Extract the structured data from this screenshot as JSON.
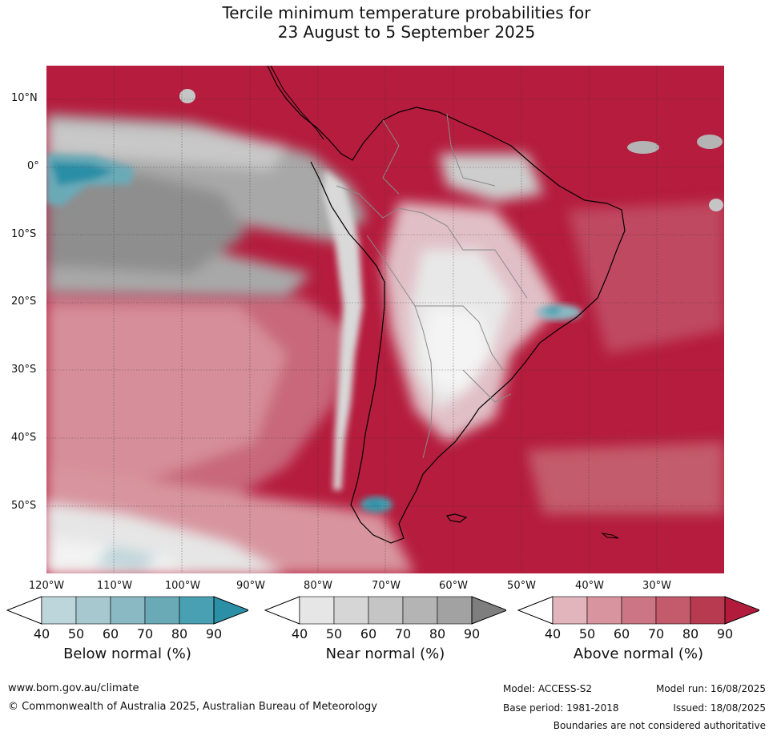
{
  "title_line1": "Tercile minimum temperature probabilities for",
  "title_line2": "23 August to 5 September 2025",
  "map": {
    "lat_labels": [
      "10°N",
      "0°",
      "10°S",
      "20°S",
      "30°S",
      "40°S",
      "50°S"
    ],
    "lon_labels": [
      "120°W",
      "110°W",
      "100°W",
      "90°W",
      "80°W",
      "70°W",
      "60°W",
      "50°W",
      "40°W",
      "30°W"
    ]
  },
  "legends": [
    {
      "title": "Below normal (%)",
      "ticks": [
        "40",
        "50",
        "60",
        "70",
        "80",
        "90"
      ],
      "colors": [
        "#bdd6dc",
        "#a7c8cf",
        "#8ab9c3",
        "#6aaab7",
        "#48a0b2",
        "#2b8fa6"
      ]
    },
    {
      "title": "Near normal (%)",
      "ticks": [
        "40",
        "50",
        "60",
        "70",
        "80",
        "90"
      ],
      "colors": [
        "#e6e6e6",
        "#d6d6d6",
        "#c5c5c5",
        "#b4b4b4",
        "#a2a2a2",
        "#7e7e7e"
      ]
    },
    {
      "title": "Above normal (%)",
      "ticks": [
        "40",
        "50",
        "60",
        "70",
        "80",
        "90"
      ],
      "colors": [
        "#e2b5bc",
        "#d8959f",
        "#cc7584",
        "#c35b6c",
        "#b83a51",
        "#b31b3c"
      ]
    }
  ],
  "footer": {
    "website": "www.bom.gov.au/climate",
    "copyright": "© Commonwealth of Australia 2025, Australian Bureau of Meteorology",
    "model": "Model: ACCESS-S2",
    "base_period": "Base period: 1981-2018",
    "model_run": "Model run: 16/08/2025",
    "issued": "Issued: 18/08/2025",
    "disclaimer": "Boundaries are not considered authoritative"
  }
}
